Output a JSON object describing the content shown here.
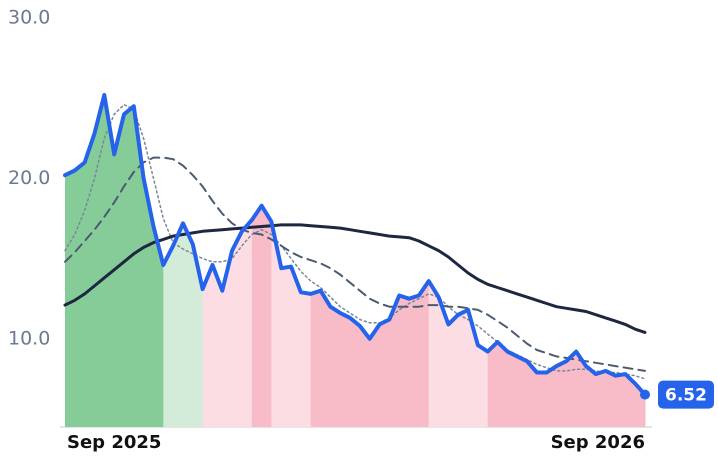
{
  "chart_data": {
    "type": "line",
    "categories": [
      "Sep 2025",
      null,
      null,
      null,
      null,
      null,
      null,
      null,
      null,
      null,
      null,
      null,
      null,
      null,
      null,
      null,
      null,
      null,
      null,
      null,
      null,
      null,
      null,
      null,
      null,
      null,
      null,
      null,
      null,
      null,
      null,
      null,
      null,
      null,
      null,
      null,
      null,
      null,
      null,
      null,
      null,
      null,
      null,
      null,
      null,
      null,
      null,
      null,
      null,
      null,
      null,
      null,
      null,
      null,
      null,
      null,
      null,
      null,
      null,
      "Sep 2026"
    ],
    "series": [
      {
        "color": "#2563eb",
        "style": "solid",
        "width": 4,
        "values": [
          20.2,
          20.5,
          21.0,
          22.8,
          25.2,
          21.5,
          24.0,
          24.5,
          20.0,
          17.0,
          14.6,
          15.8,
          17.2,
          15.9,
          13.1,
          14.6,
          13.0,
          15.5,
          16.7,
          17.4,
          18.3,
          17.3,
          14.4,
          14.5,
          12.9,
          12.8,
          13.0,
          12.0,
          11.6,
          11.3,
          10.8,
          10.0,
          10.9,
          11.2,
          12.7,
          12.5,
          12.7,
          13.6,
          12.6,
          10.9,
          11.5,
          11.8,
          9.6,
          9.2,
          9.8,
          9.2,
          8.9,
          8.6,
          7.9,
          7.9,
          8.3,
          8.6,
          9.2,
          8.3,
          7.8,
          8.0,
          7.7,
          7.8,
          7.2,
          6.52
        ]
      },
      {
        "color": "#1e2740",
        "style": "solid",
        "width": 3,
        "values": [
          12.1,
          12.4,
          12.8,
          13.3,
          13.8,
          14.3,
          14.8,
          15.3,
          15.7,
          16.0,
          16.2,
          16.4,
          16.5,
          16.6,
          16.7,
          16.75,
          16.8,
          16.85,
          16.9,
          16.95,
          17.0,
          17.05,
          17.1,
          17.1,
          17.1,
          17.05,
          17.0,
          16.95,
          16.9,
          16.8,
          16.7,
          16.6,
          16.5,
          16.4,
          16.35,
          16.3,
          16.1,
          15.8,
          15.5,
          15.1,
          14.6,
          14.1,
          13.7,
          13.4,
          13.2,
          13.0,
          12.8,
          12.6,
          12.4,
          12.2,
          12.0,
          11.9,
          11.8,
          11.7,
          11.5,
          11.3,
          11.1,
          10.9,
          10.6,
          10.4
        ]
      },
      {
        "color": "#4b5a70",
        "style": "dashed",
        "width": 2,
        "values": [
          14.8,
          15.4,
          16.1,
          16.8,
          17.6,
          18.5,
          19.5,
          20.4,
          21.0,
          21.3,
          21.3,
          21.2,
          20.8,
          20.2,
          19.5,
          18.6,
          17.8,
          17.2,
          16.8,
          16.6,
          16.5,
          16.2,
          15.8,
          15.4,
          15.1,
          14.9,
          14.7,
          14.4,
          14.0,
          13.5,
          13.0,
          12.5,
          12.2,
          12.0,
          12.0,
          12.0,
          12.0,
          12.1,
          12.1,
          12.0,
          12.0,
          11.9,
          11.8,
          11.5,
          11.1,
          10.7,
          10.2,
          9.7,
          9.3,
          9.1,
          8.9,
          8.8,
          8.7,
          8.6,
          8.5,
          8.4,
          8.3,
          8.2,
          8.1,
          8.0
        ]
      },
      {
        "color": "#7a879b",
        "style": "dotted",
        "width": 1.5,
        "values": [
          15.5,
          16.5,
          18,
          20,
          22.5,
          24,
          24.6,
          24.3,
          22.5,
          20,
          17.5,
          16,
          15.6,
          15.3,
          15.0,
          14.8,
          14.8,
          15.0,
          15.8,
          16.5,
          16.8,
          16.5,
          15.8,
          15.0,
          14.2,
          13.6,
          13.2,
          12.6,
          12.0,
          11.6,
          11.2,
          11.0,
          11.0,
          11.3,
          11.8,
          12.2,
          12.5,
          12.8,
          12.6,
          12.0,
          11.5,
          11.2,
          10.8,
          10.3,
          9.8,
          9.3,
          9.0,
          8.7,
          8.4,
          8.2,
          8.0,
          8.0,
          8.1,
          8.1,
          8.0,
          7.9,
          7.9,
          7.8,
          7.7,
          7.5
        ]
      }
    ],
    "fill_colors": [
      "#86cc99",
      "#86cc99",
      "#86cc99",
      "#86cc99",
      "#86cc99",
      "#86cc99",
      "#86cc99",
      "#86cc99",
      "#86cc99",
      "#86cc99",
      "#d3ecd9",
      "#d3ecd9",
      "#d3ecd9",
      "#d3ecd9",
      "#fcdde3",
      "#fcdde3",
      "#fcdde3",
      "#fcdde3",
      "#fcdde3",
      "#f8bcc8",
      "#f8bcc8",
      "#fcdde3",
      "#fcdde3",
      "#fcdde3",
      "#fcdde3",
      "#f8bcc8",
      "#f8bcc8",
      "#f8bcc8",
      "#f8bcc8",
      "#f8bcc8",
      "#f8bcc8",
      "#f8bcc8",
      "#f8bcc8",
      "#f8bcc8",
      "#f8bcc8",
      "#f8bcc8",
      "#f8bcc8",
      "#fcdde3",
      "#fcdde3",
      "#fcdde3",
      "#fcdde3",
      "#fcdde3",
      "#fcdde3",
      "#f8bcc8",
      "#f8bcc8",
      "#f8bcc8",
      "#f8bcc8",
      "#f8bcc8",
      "#f8bcc8",
      "#f8bcc8",
      "#f8bcc8",
      "#f8bcc8",
      "#f8bcc8",
      "#f8bcc8",
      "#f8bcc8",
      "#f8bcc8",
      "#f8bcc8",
      "#f8bcc8",
      "#f8bcc8",
      "#f8bcc8"
    ],
    "ylim": [
      4.5,
      30.5
    ],
    "yticks": [
      {
        "value": 10,
        "label": "10.0"
      },
      {
        "value": 20,
        "label": "20.0"
      },
      {
        "value": 30,
        "label": "30.0"
      }
    ],
    "grid": false
  }
}
